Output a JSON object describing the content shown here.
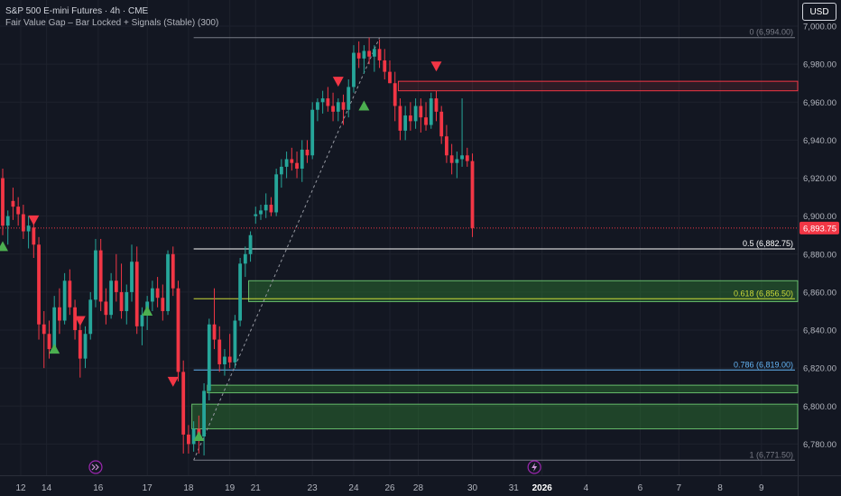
{
  "header": {
    "title": "S&P 500 E-mini Futures · 4h · CME",
    "indicator": "Fair Value Gap – Bar Locked + Signals (Stable) (300)"
  },
  "currency_button": "USD",
  "colors": {
    "background": "#131722",
    "up": "#26a69a",
    "down": "#f23645",
    "grid": "#1e222d",
    "axis_text": "#b2b5be",
    "price_badge": "#f23645",
    "fvg_bull_fill": "#2e7d32",
    "fvg_bull_line": "#66bb6a",
    "fvg_bear_line": "#f23645",
    "fib_0": "#787b86",
    "fib_05": "#ffffff",
    "fib_0618": "#cddc39",
    "fib_0786": "#64b5f6",
    "fib_1": "#787b86"
  },
  "chart_data": {
    "type": "candlestick",
    "ylim": [
      6765,
      7010
    ],
    "y_ticks": [
      {
        "value": 7000,
        "label": "7,000.00"
      },
      {
        "value": 6980,
        "label": "6,980.00"
      },
      {
        "value": 6960,
        "label": "6,960.00"
      },
      {
        "value": 6940,
        "label": "6,940.00"
      },
      {
        "value": 6920,
        "label": "6,920.00"
      },
      {
        "value": 6900,
        "label": "6,900.00"
      },
      {
        "value": 6880,
        "label": "6,880.00"
      },
      {
        "value": 6860,
        "label": "6,860.00"
      },
      {
        "value": 6840,
        "label": "6,840.00"
      },
      {
        "value": 6820,
        "label": "6,820.00"
      },
      {
        "value": 6800,
        "label": "6,800.00"
      },
      {
        "value": 6780,
        "label": "6,780.00"
      }
    ],
    "x_ticks": [
      {
        "index": 3.5,
        "label": "12",
        "bold": false
      },
      {
        "index": 8.5,
        "label": "14",
        "bold": false
      },
      {
        "index": 18.5,
        "label": "16",
        "bold": false
      },
      {
        "index": 28,
        "label": "17",
        "bold": false
      },
      {
        "index": 36,
        "label": "18",
        "bold": false
      },
      {
        "index": 44,
        "label": "19",
        "bold": false
      },
      {
        "index": 49,
        "label": "21",
        "bold": false
      },
      {
        "index": 60,
        "label": "23",
        "bold": false
      },
      {
        "index": 68,
        "label": "24",
        "bold": false
      },
      {
        "index": 75,
        "label": "26",
        "bold": false
      },
      {
        "index": 80.5,
        "label": "28",
        "bold": false
      },
      {
        "index": 91,
        "label": "30",
        "bold": false
      },
      {
        "index": 99,
        "label": "31",
        "bold": false
      },
      {
        "index": 104.5,
        "label": "2026",
        "bold": true
      },
      {
        "index": 113,
        "label": "4",
        "bold": false
      },
      {
        "index": 123.5,
        "label": "6",
        "bold": false
      },
      {
        "index": 131,
        "label": "7",
        "bold": false
      },
      {
        "index": 139,
        "label": "8",
        "bold": false
      },
      {
        "index": 147,
        "label": "9",
        "bold": false
      }
    ],
    "candles": [
      {
        "o": 6920,
        "h": 6925,
        "l": 6890,
        "c": 6895
      },
      {
        "o": 6895,
        "h": 6903,
        "l": 6885,
        "c": 6900
      },
      {
        "o": 6908,
        "h": 6915,
        "l": 6898,
        "c": 6905
      },
      {
        "o": 6905,
        "h": 6910,
        "l": 6895,
        "c": 6901
      },
      {
        "o": 6901,
        "h": 6906,
        "l": 6888,
        "c": 6892
      },
      {
        "o": 6892,
        "h": 6900,
        "l": 6883,
        "c": 6895
      },
      {
        "o": 6894,
        "h": 6898,
        "l": 6878,
        "c": 6885
      },
      {
        "o": 6885,
        "h": 6889,
        "l": 6835,
        "c": 6843
      },
      {
        "o": 6843,
        "h": 6850,
        "l": 6820,
        "c": 6838
      },
      {
        "o": 6838,
        "h": 6845,
        "l": 6825,
        "c": 6830
      },
      {
        "o": 6830,
        "h": 6858,
        "l": 6828,
        "c": 6852
      },
      {
        "o": 6852,
        "h": 6862,
        "l": 6838,
        "c": 6845
      },
      {
        "o": 6845,
        "h": 6870,
        "l": 6843,
        "c": 6866
      },
      {
        "o": 6866,
        "h": 6872,
        "l": 6848,
        "c": 6852
      },
      {
        "o": 6852,
        "h": 6856,
        "l": 6835,
        "c": 6840
      },
      {
        "o": 6840,
        "h": 6846,
        "l": 6815,
        "c": 6825
      },
      {
        "o": 6825,
        "h": 6842,
        "l": 6820,
        "c": 6838
      },
      {
        "o": 6838,
        "h": 6860,
        "l": 6835,
        "c": 6856
      },
      {
        "o": 6856,
        "h": 6888,
        "l": 6852,
        "c": 6882
      },
      {
        "o": 6882,
        "h": 6888,
        "l": 6850,
        "c": 6855
      },
      {
        "o": 6855,
        "h": 6862,
        "l": 6843,
        "c": 6848
      },
      {
        "o": 6848,
        "h": 6870,
        "l": 6846,
        "c": 6866
      },
      {
        "o": 6866,
        "h": 6880,
        "l": 6855,
        "c": 6860
      },
      {
        "o": 6860,
        "h": 6875,
        "l": 6846,
        "c": 6850
      },
      {
        "o": 6850,
        "h": 6864,
        "l": 6843,
        "c": 6860
      },
      {
        "o": 6860,
        "h": 6885,
        "l": 6855,
        "c": 6876
      },
      {
        "o": 6876,
        "h": 6884,
        "l": 6838,
        "c": 6842
      },
      {
        "o": 6842,
        "h": 6852,
        "l": 6832,
        "c": 6848
      },
      {
        "o": 6848,
        "h": 6858,
        "l": 6840,
        "c": 6855
      },
      {
        "o": 6855,
        "h": 6866,
        "l": 6850,
        "c": 6862
      },
      {
        "o": 6862,
        "h": 6868,
        "l": 6852,
        "c": 6857
      },
      {
        "o": 6857,
        "h": 6864,
        "l": 6845,
        "c": 6850
      },
      {
        "o": 6850,
        "h": 6882,
        "l": 6848,
        "c": 6880
      },
      {
        "o": 6880,
        "h": 6884,
        "l": 6858,
        "c": 6862
      },
      {
        "o": 6862,
        "h": 6866,
        "l": 6813,
        "c": 6818
      },
      {
        "o": 6818,
        "h": 6824,
        "l": 6775,
        "c": 6785
      },
      {
        "o": 6785,
        "h": 6790,
        "l": 6775,
        "c": 6780
      },
      {
        "o": 6780,
        "h": 6792,
        "l": 6776,
        "c": 6788
      },
      {
        "o": 6788,
        "h": 6795,
        "l": 6775,
        "c": 6784
      },
      {
        "o": 6784,
        "h": 6812,
        "l": 6774,
        "c": 6808
      },
      {
        "o": 6808,
        "h": 6846,
        "l": 6803,
        "c": 6843
      },
      {
        "o": 6843,
        "h": 6862,
        "l": 6830,
        "c": 6835
      },
      {
        "o": 6835,
        "h": 6842,
        "l": 6818,
        "c": 6822
      },
      {
        "o": 6822,
        "h": 6830,
        "l": 6816,
        "c": 6826
      },
      {
        "o": 6826,
        "h": 6838,
        "l": 6820,
        "c": 6823
      },
      {
        "o": 6823,
        "h": 6848,
        "l": 6820,
        "c": 6845
      },
      {
        "o": 6845,
        "h": 6878,
        "l": 6842,
        "c": 6875
      },
      {
        "o": 6875,
        "h": 6884,
        "l": 6868,
        "c": 6880
      },
      {
        "o": 6880,
        "h": 6892,
        "l": 6876,
        "c": 6890
      },
      {
        "o": 6900,
        "h": 6905,
        "l": 6896,
        "c": 6901
      },
      {
        "o": 6901,
        "h": 6906,
        "l": 6898,
        "c": 6903
      },
      {
        "o": 6903,
        "h": 6912,
        "l": 6899,
        "c": 6906
      },
      {
        "o": 6906,
        "h": 6910,
        "l": 6900,
        "c": 6902
      },
      {
        "o": 6902,
        "h": 6925,
        "l": 6900,
        "c": 6922
      },
      {
        "o": 6922,
        "h": 6930,
        "l": 6915,
        "c": 6926
      },
      {
        "o": 6926,
        "h": 6934,
        "l": 6920,
        "c": 6930
      },
      {
        "o": 6930,
        "h": 6936,
        "l": 6924,
        "c": 6928
      },
      {
        "o": 6928,
        "h": 6934,
        "l": 6920,
        "c": 6925
      },
      {
        "o": 6925,
        "h": 6940,
        "l": 6918,
        "c": 6935
      },
      {
        "o": 6935,
        "h": 6940,
        "l": 6928,
        "c": 6932
      },
      {
        "o": 6932,
        "h": 6960,
        "l": 6930,
        "c": 6956
      },
      {
        "o": 6956,
        "h": 6962,
        "l": 6950,
        "c": 6960
      },
      {
        "o": 6960,
        "h": 6966,
        "l": 6954,
        "c": 6962
      },
      {
        "o": 6962,
        "h": 6968,
        "l": 6955,
        "c": 6958
      },
      {
        "o": 6958,
        "h": 6965,
        "l": 6950,
        "c": 6955
      },
      {
        "o": 6955,
        "h": 6962,
        "l": 6950,
        "c": 6960
      },
      {
        "o": 6960,
        "h": 6964,
        "l": 6948,
        "c": 6956
      },
      {
        "o": 6956,
        "h": 6972,
        "l": 6952,
        "c": 6968
      },
      {
        "o": 6968,
        "h": 6990,
        "l": 6965,
        "c": 6986
      },
      {
        "o": 6986,
        "h": 6992,
        "l": 6978,
        "c": 6983
      },
      {
        "o": 6983,
        "h": 6990,
        "l": 6975,
        "c": 6987
      },
      {
        "o": 6987,
        "h": 6994,
        "l": 6980,
        "c": 6984
      },
      {
        "o": 6984,
        "h": 6990,
        "l": 6976,
        "c": 6988
      },
      {
        "o": 6988,
        "h": 6993,
        "l": 6978,
        "c": 6982
      },
      {
        "o": 6982,
        "h": 6988,
        "l": 6972,
        "c": 6976
      },
      {
        "o": 6976,
        "h": 6982,
        "l": 6970,
        "c": 6970
      },
      {
        "o": 6970,
        "h": 6976,
        "l": 6950,
        "c": 6958
      },
      {
        "o": 6958,
        "h": 6962,
        "l": 6940,
        "c": 6945
      },
      {
        "o": 6945,
        "h": 6958,
        "l": 6940,
        "c": 6953
      },
      {
        "o": 6953,
        "h": 6960,
        "l": 6945,
        "c": 6950
      },
      {
        "o": 6950,
        "h": 6962,
        "l": 6946,
        "c": 6958
      },
      {
        "o": 6958,
        "h": 6962,
        "l": 6944,
        "c": 6952
      },
      {
        "o": 6952,
        "h": 6960,
        "l": 6945,
        "c": 6948
      },
      {
        "o": 6948,
        "h": 6965,
        "l": 6946,
        "c": 6962
      },
      {
        "o": 6962,
        "h": 6966,
        "l": 6950,
        "c": 6955
      },
      {
        "o": 6955,
        "h": 6958,
        "l": 6938,
        "c": 6942
      },
      {
        "o": 6942,
        "h": 6948,
        "l": 6928,
        "c": 6932
      },
      {
        "o": 6932,
        "h": 6938,
        "l": 6922,
        "c": 6928
      },
      {
        "o": 6928,
        "h": 6934,
        "l": 6920,
        "c": 6930
      },
      {
        "o": 6930,
        "h": 6962,
        "l": 6926,
        "c": 6932
      },
      {
        "o": 6932,
        "h": 6936,
        "l": 6926,
        "c": 6929
      },
      {
        "o": 6929,
        "h": 6933,
        "l": 6889,
        "c": 6893.75
      }
    ],
    "candle_start_index": 0,
    "last_price": 6893.75,
    "last_price_label": "6,893.75",
    "fvg_zones": [
      {
        "kind": "bear",
        "top": 6971,
        "bottom": 6966,
        "start_index": 77
      },
      {
        "kind": "bull",
        "top": 6866,
        "bottom": 6855,
        "start_index": 48
      },
      {
        "kind": "bull",
        "top": 6811,
        "bottom": 6807,
        "start_index": 40
      },
      {
        "kind": "bull",
        "top": 6801,
        "bottom": 6788,
        "start_index": 37
      }
    ],
    "fib_levels": [
      {
        "ratio": "0",
        "value": 6994.0,
        "label": "0 (6,994.00)",
        "color": "#787b86"
      },
      {
        "ratio": "0.5",
        "value": 6882.75,
        "label": "0.5 (6,882.75)",
        "color": "#ffffff"
      },
      {
        "ratio": "0.618",
        "value": 6856.5,
        "label": "0.618 (6,856.50)",
        "color": "#cddc39"
      },
      {
        "ratio": "0.786",
        "value": 6819.0,
        "label": "0.786 (6,819.00)",
        "color": "#64b5f6"
      },
      {
        "ratio": "1",
        "value": 6771.5,
        "label": "1 (6,771.50)",
        "color": "#787b86"
      }
    ],
    "fib_start_index": 37,
    "fib_end_index": 155,
    "fib_diagonal": {
      "from_index": 37,
      "from_value": 6771.5,
      "to_index": 73,
      "to_value": 6994.0
    },
    "signals": [
      {
        "type": "buy",
        "index": 0,
        "value": 6884
      },
      {
        "type": "sell",
        "index": 6,
        "value": 6898
      },
      {
        "type": "buy",
        "index": 10,
        "value": 6830
      },
      {
        "type": "sell",
        "index": 15,
        "value": 6845
      },
      {
        "type": "buy",
        "index": 28,
        "value": 6850
      },
      {
        "type": "sell",
        "index": 33,
        "value": 6813
      },
      {
        "type": "buy",
        "index": 38,
        "value": 6784
      },
      {
        "type": "sell",
        "index": 65,
        "value": 6971
      },
      {
        "type": "buy",
        "index": 70,
        "value": 6958
      },
      {
        "type": "sell",
        "index": 84,
        "value": 6979
      }
    ],
    "session_markers": [
      {
        "index": 18,
        "icon": "double-chevron-right-icon"
      },
      {
        "index": 103,
        "icon": "lightning-icon"
      }
    ]
  }
}
